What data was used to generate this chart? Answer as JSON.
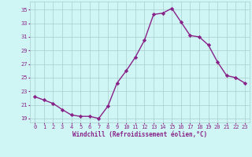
{
  "x": [
    0,
    1,
    2,
    3,
    4,
    5,
    6,
    7,
    8,
    9,
    10,
    11,
    12,
    13,
    14,
    15,
    16,
    17,
    18,
    19,
    20,
    21,
    22,
    23
  ],
  "y": [
    22.2,
    21.7,
    21.2,
    20.3,
    19.5,
    19.3,
    19.3,
    19.0,
    20.8,
    24.2,
    26.0,
    28.0,
    30.5,
    34.3,
    34.5,
    35.2,
    33.2,
    31.2,
    31.0,
    29.8,
    27.3,
    25.3,
    25.0,
    24.2
  ],
  "line_color": "#882288",
  "marker": "D",
  "marker_size": 2.2,
  "bg_color": "#d0f5f5",
  "grid_color": "#aacccc",
  "yticks": [
    19,
    21,
    23,
    25,
    27,
    29,
    31,
    33,
    35
  ],
  "ylim": [
    18.4,
    36.2
  ],
  "xlim": [
    -0.5,
    23.5
  ],
  "xlabel": "Windchill (Refroidissement éolien,°C)",
  "label_color": "#882288",
  "tick_color": "#882288",
  "tick_fontsize": 5.0,
  "xlabel_fontsize": 5.5
}
